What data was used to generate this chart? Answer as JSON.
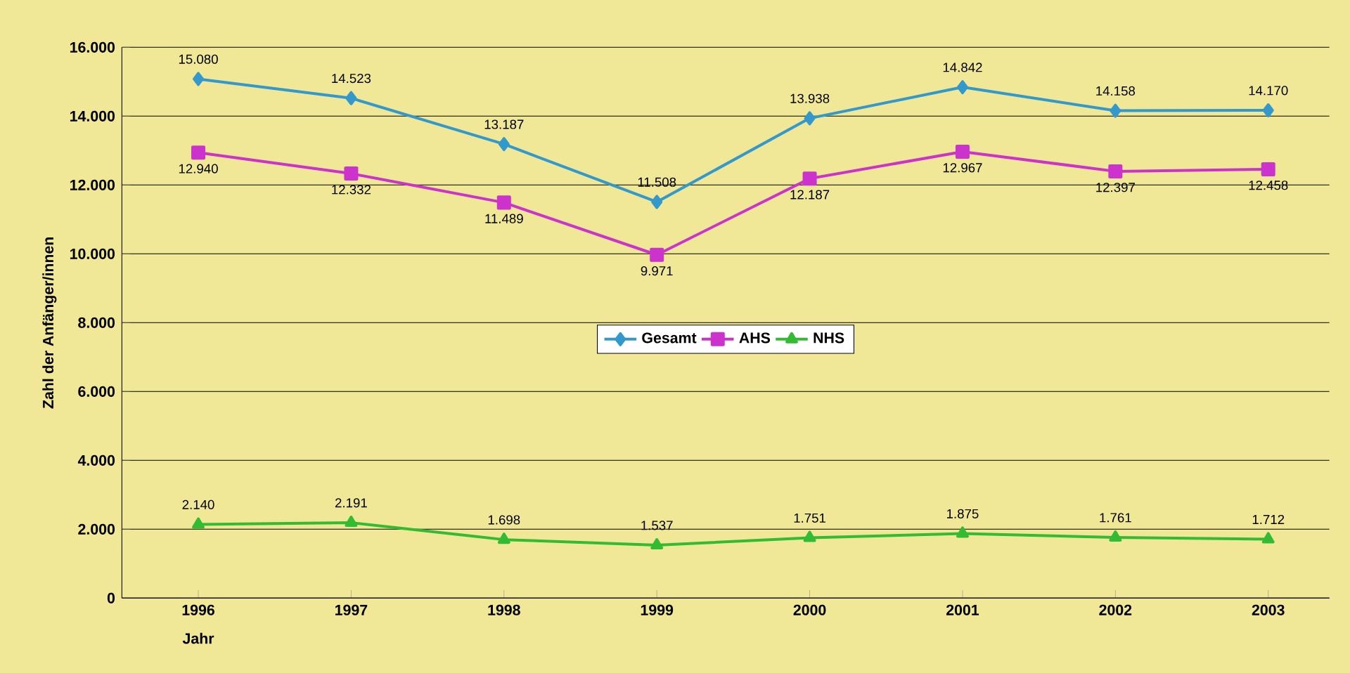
{
  "chart_data": {
    "type": "line",
    "xlabel": "Jahr",
    "ylabel": "Zahl der Anfänger/innen",
    "categories": [
      "1996",
      "1997",
      "1998",
      "1999",
      "2000",
      "2001",
      "2002",
      "2003"
    ],
    "series": [
      {
        "name": "Gesamt",
        "color": "#3399cc",
        "marker": "diamond",
        "values": [
          15080,
          14523,
          13187,
          11508,
          13938,
          14842,
          14158,
          14170
        ],
        "value_labels": [
          "15.080",
          "14.523",
          "13.187",
          "11.508",
          "13.938",
          "14.842",
          "14.158",
          "14.170"
        ]
      },
      {
        "name": "AHS",
        "color": "#cc33cc",
        "marker": "square",
        "values": [
          12940,
          12332,
          11489,
          9971,
          12187,
          12967,
          12397,
          12458
        ],
        "value_labels": [
          "12.940",
          "12.332",
          "11.489",
          "9.971",
          "12.187",
          "12.967",
          "12.397",
          "12.458"
        ]
      },
      {
        "name": "NHS",
        "color": "#33bb33",
        "marker": "triangle",
        "values": [
          2140,
          2191,
          1698,
          1537,
          1751,
          1875,
          1761,
          1712
        ],
        "value_labels": [
          "2.140",
          "2.191",
          "1.698",
          "1.537",
          "1.751",
          "1.875",
          "1.761",
          "1.712"
        ]
      }
    ],
    "ylim": [
      0,
      16000
    ],
    "yticks": [
      0,
      {
        "value": 2000,
        "label": "2.000"
      },
      {
        "value": 4000,
        "label": "4.000"
      },
      {
        "value": 6000,
        "label": "6.000"
      },
      {
        "value": 8000,
        "label": "8.000"
      },
      {
        "value": 10000,
        "label": "10.000"
      },
      {
        "value": 12000,
        "label": "12.000"
      },
      {
        "value": 14000,
        "label": "14.000"
      },
      {
        "value": 16000,
        "label": "16.000"
      }
    ],
    "grid": "y",
    "legend": "center"
  }
}
